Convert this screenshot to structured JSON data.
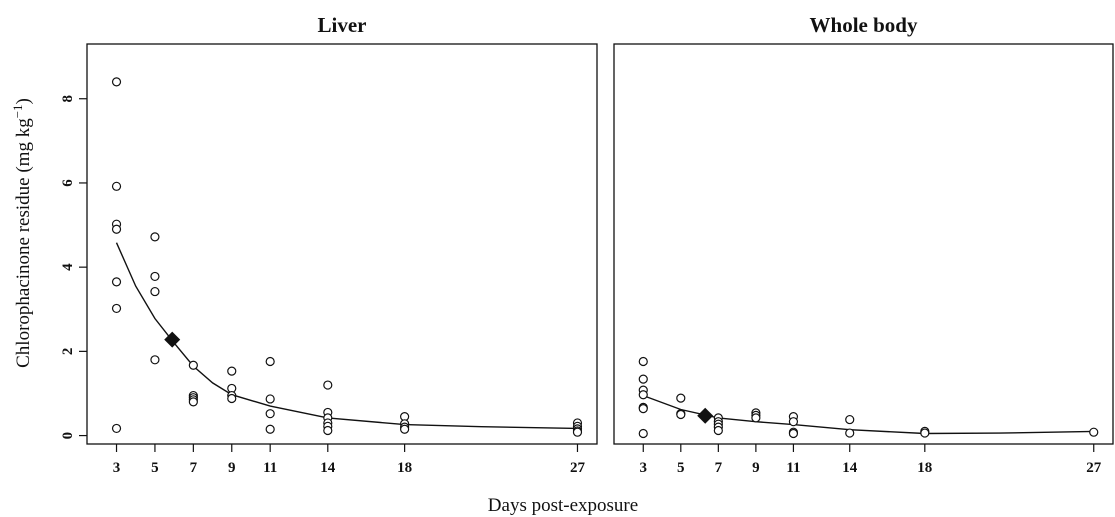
{
  "chart_data": {
    "type": "scatter",
    "shared_xlabel": "Days post-exposure",
    "shared_ylabel": "Chlorophacinone residue (mg kg",
    "shared_ylabel_sup": "−1",
    "shared_ylabel_close": ")",
    "ylim": [
      -0.2,
      9.3
    ],
    "yticks": [
      "0",
      "2",
      "4",
      "6",
      "8"
    ],
    "ytick_values": [
      0,
      2,
      4,
      6,
      8
    ],
    "xticks": [
      "3",
      "5",
      "7",
      "9",
      "11",
      "14",
      "18",
      "27"
    ],
    "xtick_values": [
      3,
      5,
      7,
      9,
      11,
      14,
      18,
      27
    ],
    "xlim": [
      2.4,
      27.6
    ],
    "panels": [
      {
        "title": "Liver",
        "points": [
          [
            3,
            8.4
          ],
          [
            3,
            5.92
          ],
          [
            3,
            5.02
          ],
          [
            3,
            4.9
          ],
          [
            3,
            3.65
          ],
          [
            3,
            3.02
          ],
          [
            3,
            0.17
          ],
          [
            5,
            4.72
          ],
          [
            5,
            3.78
          ],
          [
            5,
            3.42
          ],
          [
            5,
            1.8
          ],
          [
            7,
            1.67
          ],
          [
            7,
            0.95
          ],
          [
            7,
            0.9
          ],
          [
            7,
            0.85
          ],
          [
            7,
            0.8
          ],
          [
            9,
            1.53
          ],
          [
            9,
            1.12
          ],
          [
            9,
            0.95
          ],
          [
            9,
            0.88
          ],
          [
            11,
            1.76
          ],
          [
            11,
            0.87
          ],
          [
            11,
            0.52
          ],
          [
            11,
            0.15
          ],
          [
            14,
            1.2
          ],
          [
            14,
            0.55
          ],
          [
            14,
            0.42
          ],
          [
            14,
            0.3
          ],
          [
            14,
            0.22
          ],
          [
            14,
            0.12
          ],
          [
            18,
            0.45
          ],
          [
            18,
            0.28
          ],
          [
            18,
            0.2
          ],
          [
            18,
            0.15
          ],
          [
            27,
            0.3
          ],
          [
            27,
            0.22
          ],
          [
            27,
            0.16
          ],
          [
            27,
            0.11
          ],
          [
            27,
            0.08
          ]
        ],
        "fit": [
          [
            3,
            4.58
          ],
          [
            4,
            3.55
          ],
          [
            5,
            2.78
          ],
          [
            6,
            2.2
          ],
          [
            7,
            1.65
          ],
          [
            8,
            1.25
          ],
          [
            9,
            0.97
          ],
          [
            11,
            0.7
          ],
          [
            14,
            0.42
          ],
          [
            18,
            0.26
          ],
          [
            22,
            0.21
          ],
          [
            27,
            0.17
          ]
        ],
        "marker": [
          5.9,
          2.28
        ]
      },
      {
        "title": "Whole body",
        "points": [
          [
            3,
            1.76
          ],
          [
            3,
            1.34
          ],
          [
            3,
            1.08
          ],
          [
            3,
            0.97
          ],
          [
            3,
            0.67
          ],
          [
            3,
            0.64
          ],
          [
            3,
            0.05
          ],
          [
            5,
            0.89
          ],
          [
            5,
            0.52
          ],
          [
            5,
            0.5
          ],
          [
            7,
            0.42
          ],
          [
            7,
            0.33
          ],
          [
            7,
            0.27
          ],
          [
            7,
            0.2
          ],
          [
            7,
            0.12
          ],
          [
            9,
            0.54
          ],
          [
            9,
            0.48
          ],
          [
            9,
            0.42
          ],
          [
            11,
            0.45
          ],
          [
            11,
            0.33
          ],
          [
            11,
            0.08
          ],
          [
            11,
            0.05
          ],
          [
            14,
            0.38
          ],
          [
            14,
            0.06
          ],
          [
            18,
            0.1
          ],
          [
            18,
            0.06
          ],
          [
            27,
            0.08
          ]
        ],
        "fit": [
          [
            3,
            0.95
          ],
          [
            5,
            0.62
          ],
          [
            7,
            0.42
          ],
          [
            9,
            0.33
          ],
          [
            11,
            0.26
          ],
          [
            14,
            0.14
          ],
          [
            18,
            0.05
          ],
          [
            22,
            0.06
          ],
          [
            27,
            0.1
          ]
        ],
        "marker": [
          6.3,
          0.47
        ]
      }
    ]
  }
}
